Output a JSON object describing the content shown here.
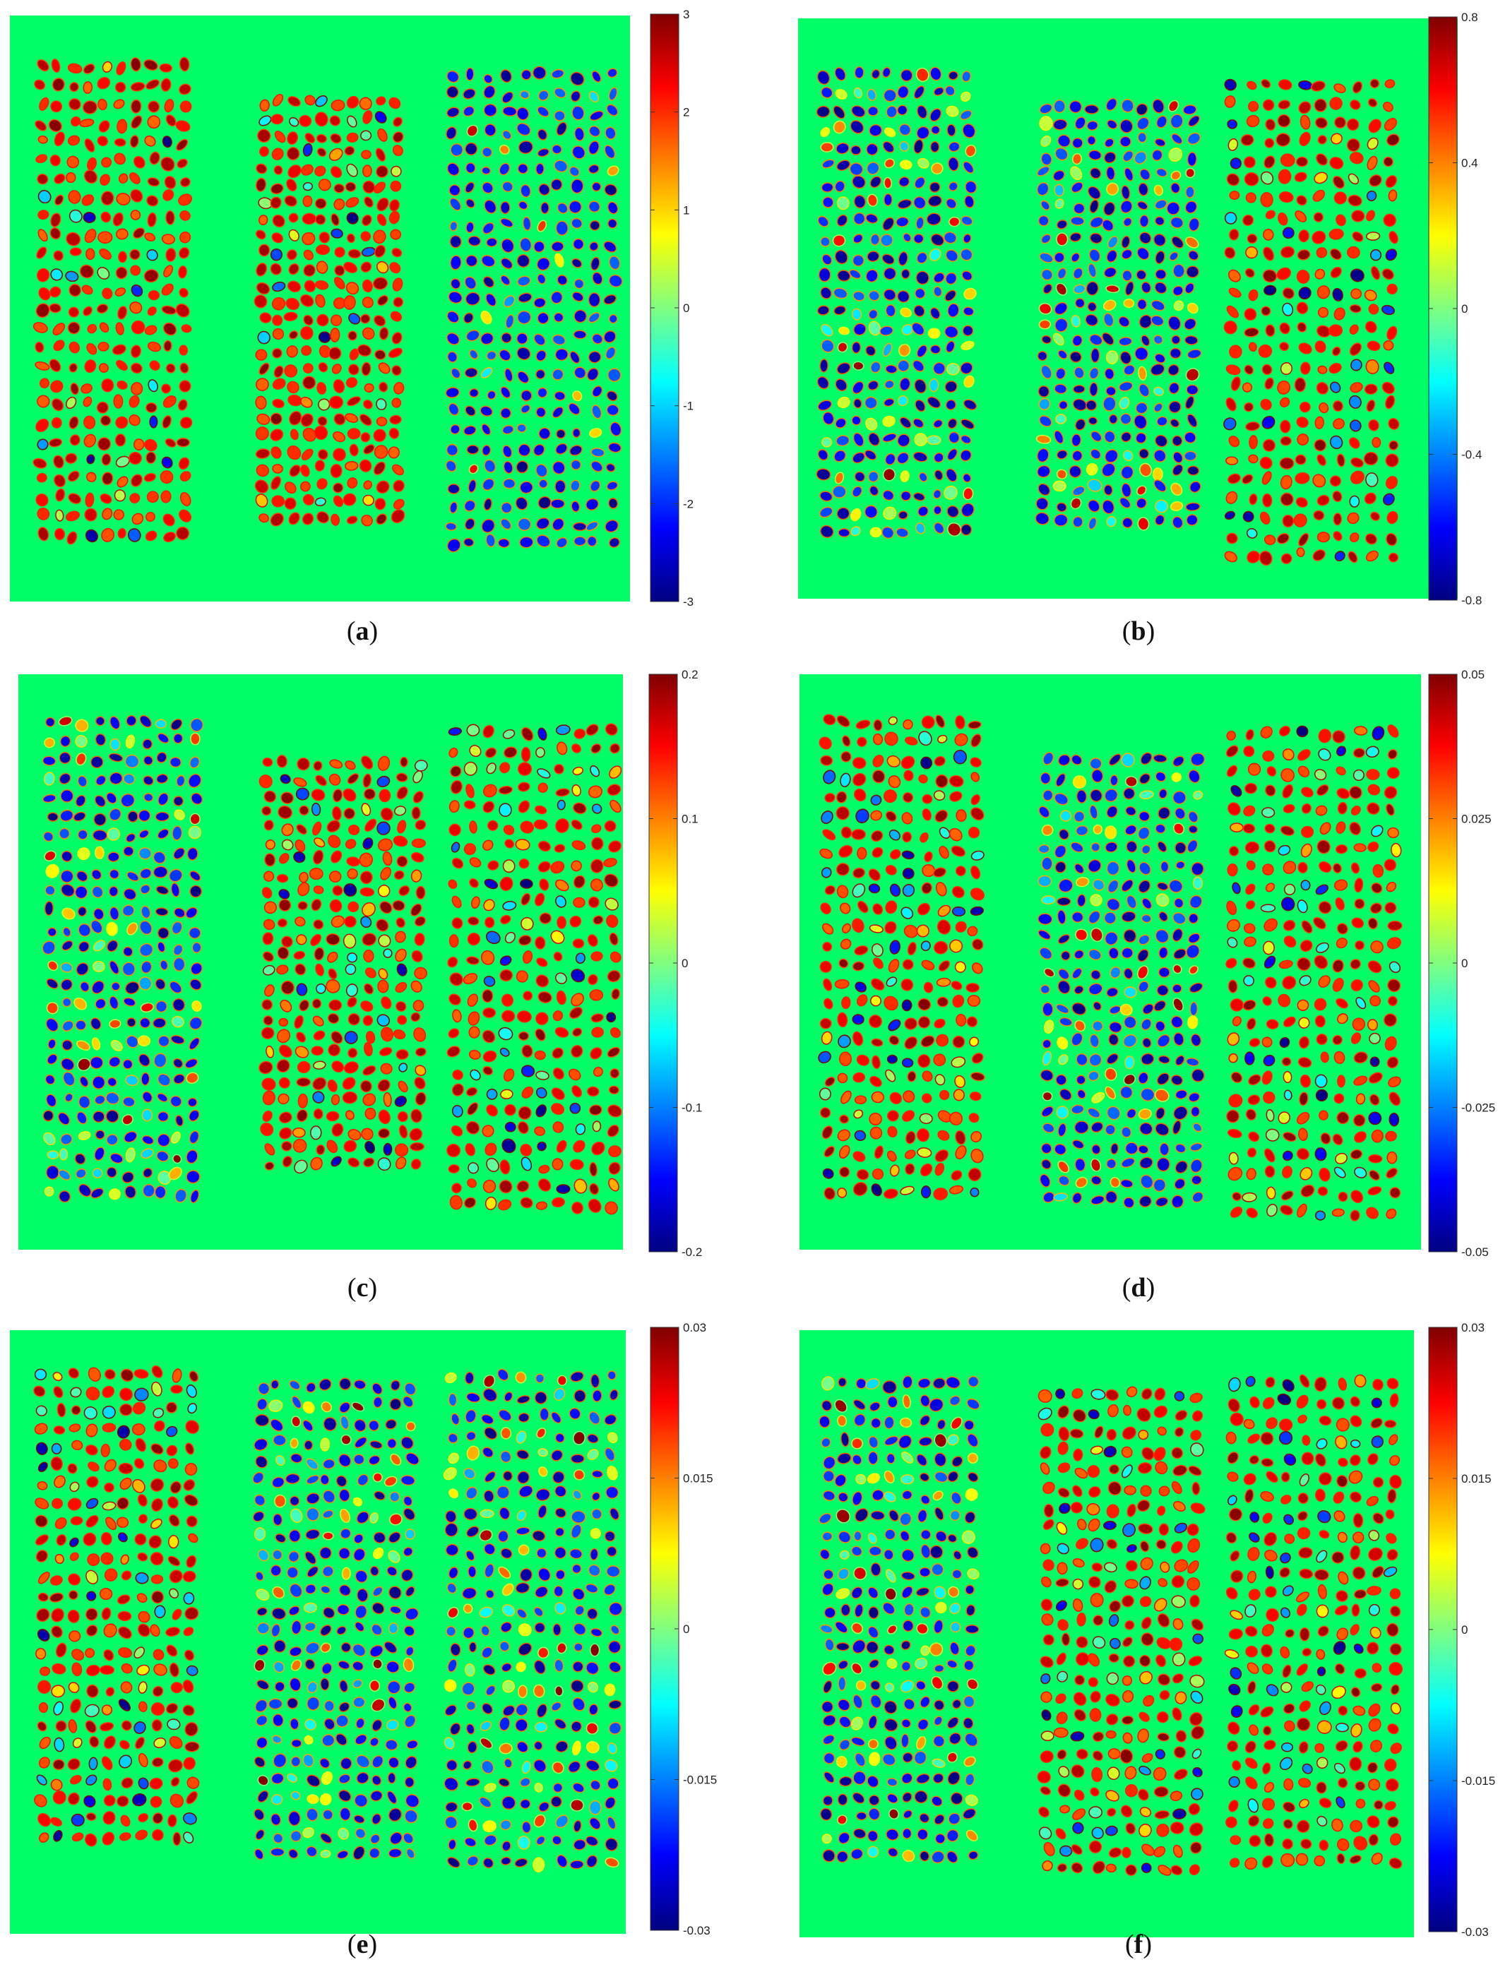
{
  "figure": {
    "colormap": "jet",
    "background_color": "#00FF66",
    "column_count": 3
  },
  "chart_data": [
    {
      "type": "heatmap",
      "panel": "a",
      "caption_open": "(",
      "caption_letter": "a",
      "caption_close": ")",
      "colorbar": {
        "min": -3,
        "max": 3,
        "ticks": [
          "3",
          "2",
          "1",
          "0",
          "-1",
          "-2",
          "-3"
        ]
      },
      "dominant_sign": [
        1,
        1,
        -1
      ],
      "spread": 0.25
    },
    {
      "type": "heatmap",
      "panel": "b",
      "caption_open": "(",
      "caption_letter": "b",
      "caption_close": ")",
      "colorbar": {
        "min": -0.8,
        "max": 0.8,
        "ticks": [
          "0.8",
          "0.4",
          "0",
          "-0.4",
          "-0.8"
        ]
      },
      "dominant_sign": [
        -1,
        -1,
        1
      ],
      "spread": 0.55
    },
    {
      "type": "heatmap",
      "panel": "c",
      "caption_open": "(",
      "caption_letter": "c",
      "caption_close": ")",
      "colorbar": {
        "min": -0.2,
        "max": 0.2,
        "ticks": [
          "0.2",
          "0.1",
          "0",
          "-0.1",
          "-0.2"
        ]
      },
      "dominant_sign": [
        -1,
        1,
        1
      ],
      "spread": 0.7
    },
    {
      "type": "heatmap",
      "panel": "d",
      "caption_open": "(",
      "caption_letter": "d",
      "caption_close": ")",
      "colorbar": {
        "min": -0.05,
        "max": 0.05,
        "ticks": [
          "0.05",
          "0.025",
          "0",
          "-0.025",
          "-0.05"
        ]
      },
      "dominant_sign": [
        1,
        -1,
        1
      ],
      "spread": 0.7
    },
    {
      "type": "heatmap",
      "panel": "e",
      "caption_open": "(",
      "caption_letter": "e",
      "caption_close": ")",
      "colorbar": {
        "min": -0.03,
        "max": 0.03,
        "ticks": [
          "0.03",
          "0.015",
          "0",
          "-0.015",
          "-0.03"
        ]
      },
      "dominant_sign": [
        1,
        -1,
        -1
      ],
      "spread": 0.7
    },
    {
      "type": "heatmap",
      "panel": "f",
      "caption_open": "(",
      "caption_letter": "f",
      "caption_close": ")",
      "colorbar": {
        "min": -0.03,
        "max": 0.03,
        "ticks": [
          "0.03",
          "0.015",
          "0",
          "-0.015",
          "-0.03"
        ]
      },
      "dominant_sign": [
        -1,
        1,
        1
      ],
      "spread": 0.7
    }
  ]
}
